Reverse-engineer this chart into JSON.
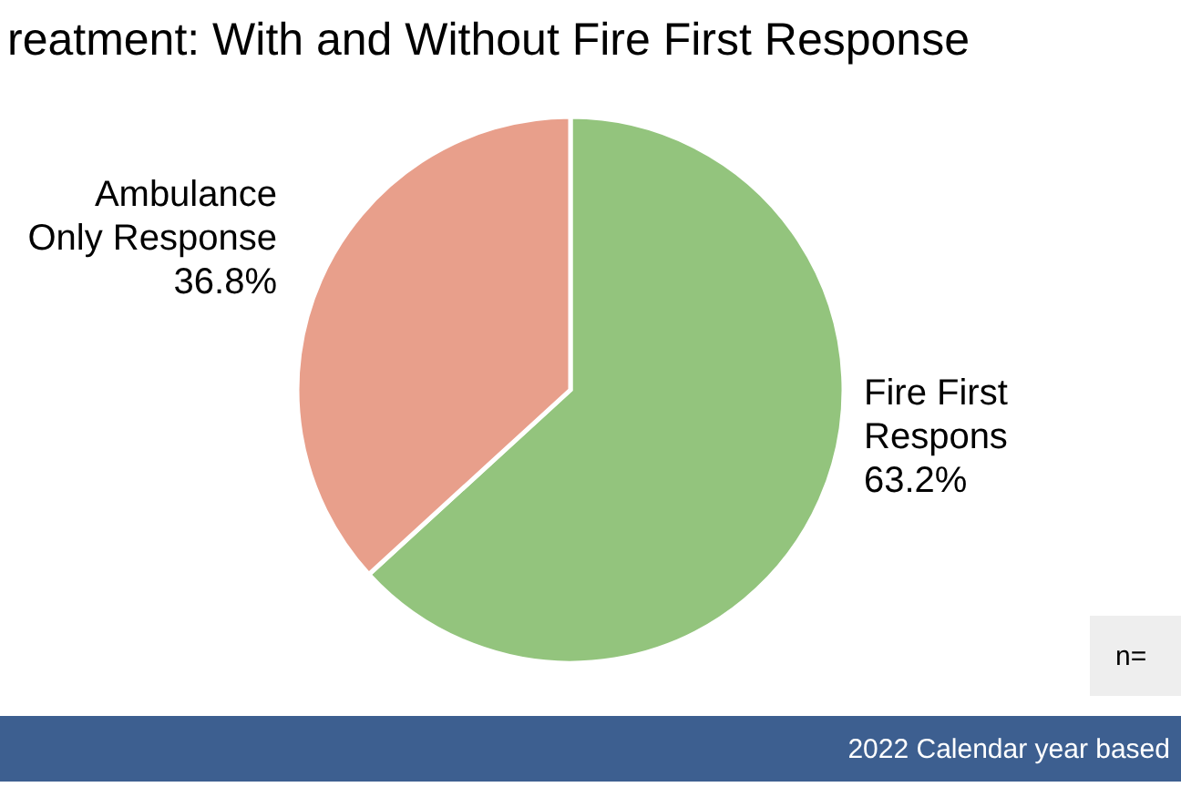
{
  "chart_data": {
    "type": "pie",
    "title": "reatment: With and Without Fire First Response",
    "categories": [
      "Fire First Respons",
      "Ambulance Only Response"
    ],
    "values": [
      63.2,
      36.8
    ],
    "colors": [
      "#93c47d",
      "#e89f8b"
    ],
    "value_labels": [
      "63.2%",
      "36.8%"
    ],
    "annotations": [
      "n=",
      "2022 Calendar year based"
    ]
  }
}
